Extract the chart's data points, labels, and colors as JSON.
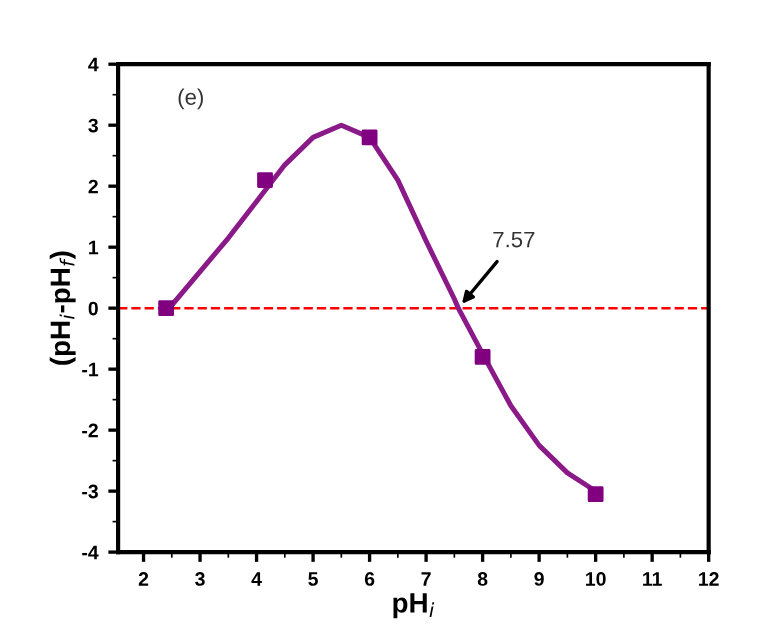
{
  "chart_data": {
    "type": "line",
    "xlabel": "pH$_{i}$",
    "ylabel": "(pH$_{i}$-pH$_{f}$)",
    "xlim": [
      1.55,
      12
    ],
    "xticks": [
      2,
      3,
      4,
      5,
      6,
      7,
      8,
      9,
      10,
      11,
      12
    ],
    "ylim": [
      -4,
      4
    ],
    "yticks": [
      -4,
      -3,
      -2,
      -1,
      0,
      1,
      2,
      3,
      4
    ],
    "series": [
      {
        "color": "#8b1a89",
        "marker": "none",
        "x": [
          2.5,
          3,
          3.5,
          4,
          4.5,
          5,
          5.5,
          6,
          6.5,
          7,
          7.5,
          7.57,
          8,
          8.5,
          9,
          9.5,
          10
        ],
        "values": [
          0.05,
          0.6,
          1.15,
          1.75,
          2.35,
          2.8,
          3.0,
          2.8,
          2.1,
          1.1,
          0.15,
          0,
          -0.75,
          -1.6,
          -2.25,
          -2.7,
          -3.0
        ]
      },
      {
        "type": "scatter",
        "color": "#800080",
        "marker": "square",
        "x": [
          2.4,
          4.15,
          6,
          8,
          10
        ],
        "values": [
          0,
          2.1,
          2.8,
          -0.8,
          -3.05
        ]
      }
    ],
    "ref_lines": [
      {
        "axis": "y",
        "value": 0,
        "label": null,
        "color": "#ff0000",
        "line_style": "dashed"
      }
    ],
    "annotations": [
      "(e)",
      {
        "text": "7.57",
        "x": 7.57,
        "y": 0
      }
    ],
    "grid": false,
    "legend": false
  }
}
